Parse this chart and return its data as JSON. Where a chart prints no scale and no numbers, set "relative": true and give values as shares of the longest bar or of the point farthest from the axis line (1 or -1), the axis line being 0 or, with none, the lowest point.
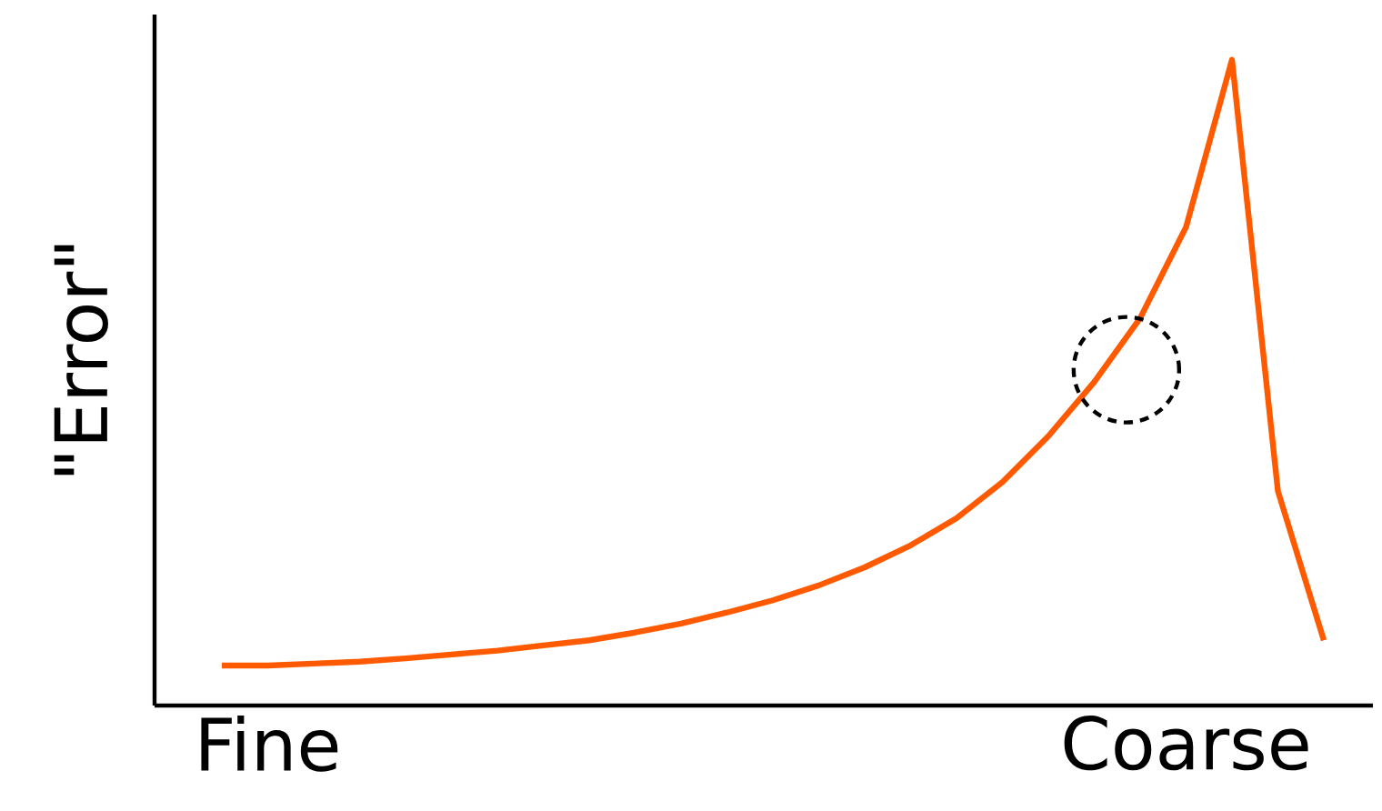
{
  "chart_data": {
    "type": "line",
    "relative": true,
    "ylabel": "\"Error\"",
    "categories": [
      null,
      "Fine",
      null,
      null,
      null,
      null,
      null,
      null,
      null,
      null,
      null,
      null,
      null,
      null,
      null,
      null,
      null,
      null,
      null,
      null,
      null,
      "Coarse",
      null,
      null,
      null
    ],
    "series": [
      {
        "color": "#ff5a00",
        "values": [
          0.062,
          0.062,
          0.065,
          0.068,
          0.073,
          0.079,
          0.085,
          0.093,
          0.101,
          0.113,
          0.127,
          0.144,
          0.163,
          0.186,
          0.214,
          0.248,
          0.29,
          0.346,
          0.417,
          0.501,
          0.6,
          0.741,
          1,
          0.332,
          0.101
        ]
      }
    ]
  }
}
